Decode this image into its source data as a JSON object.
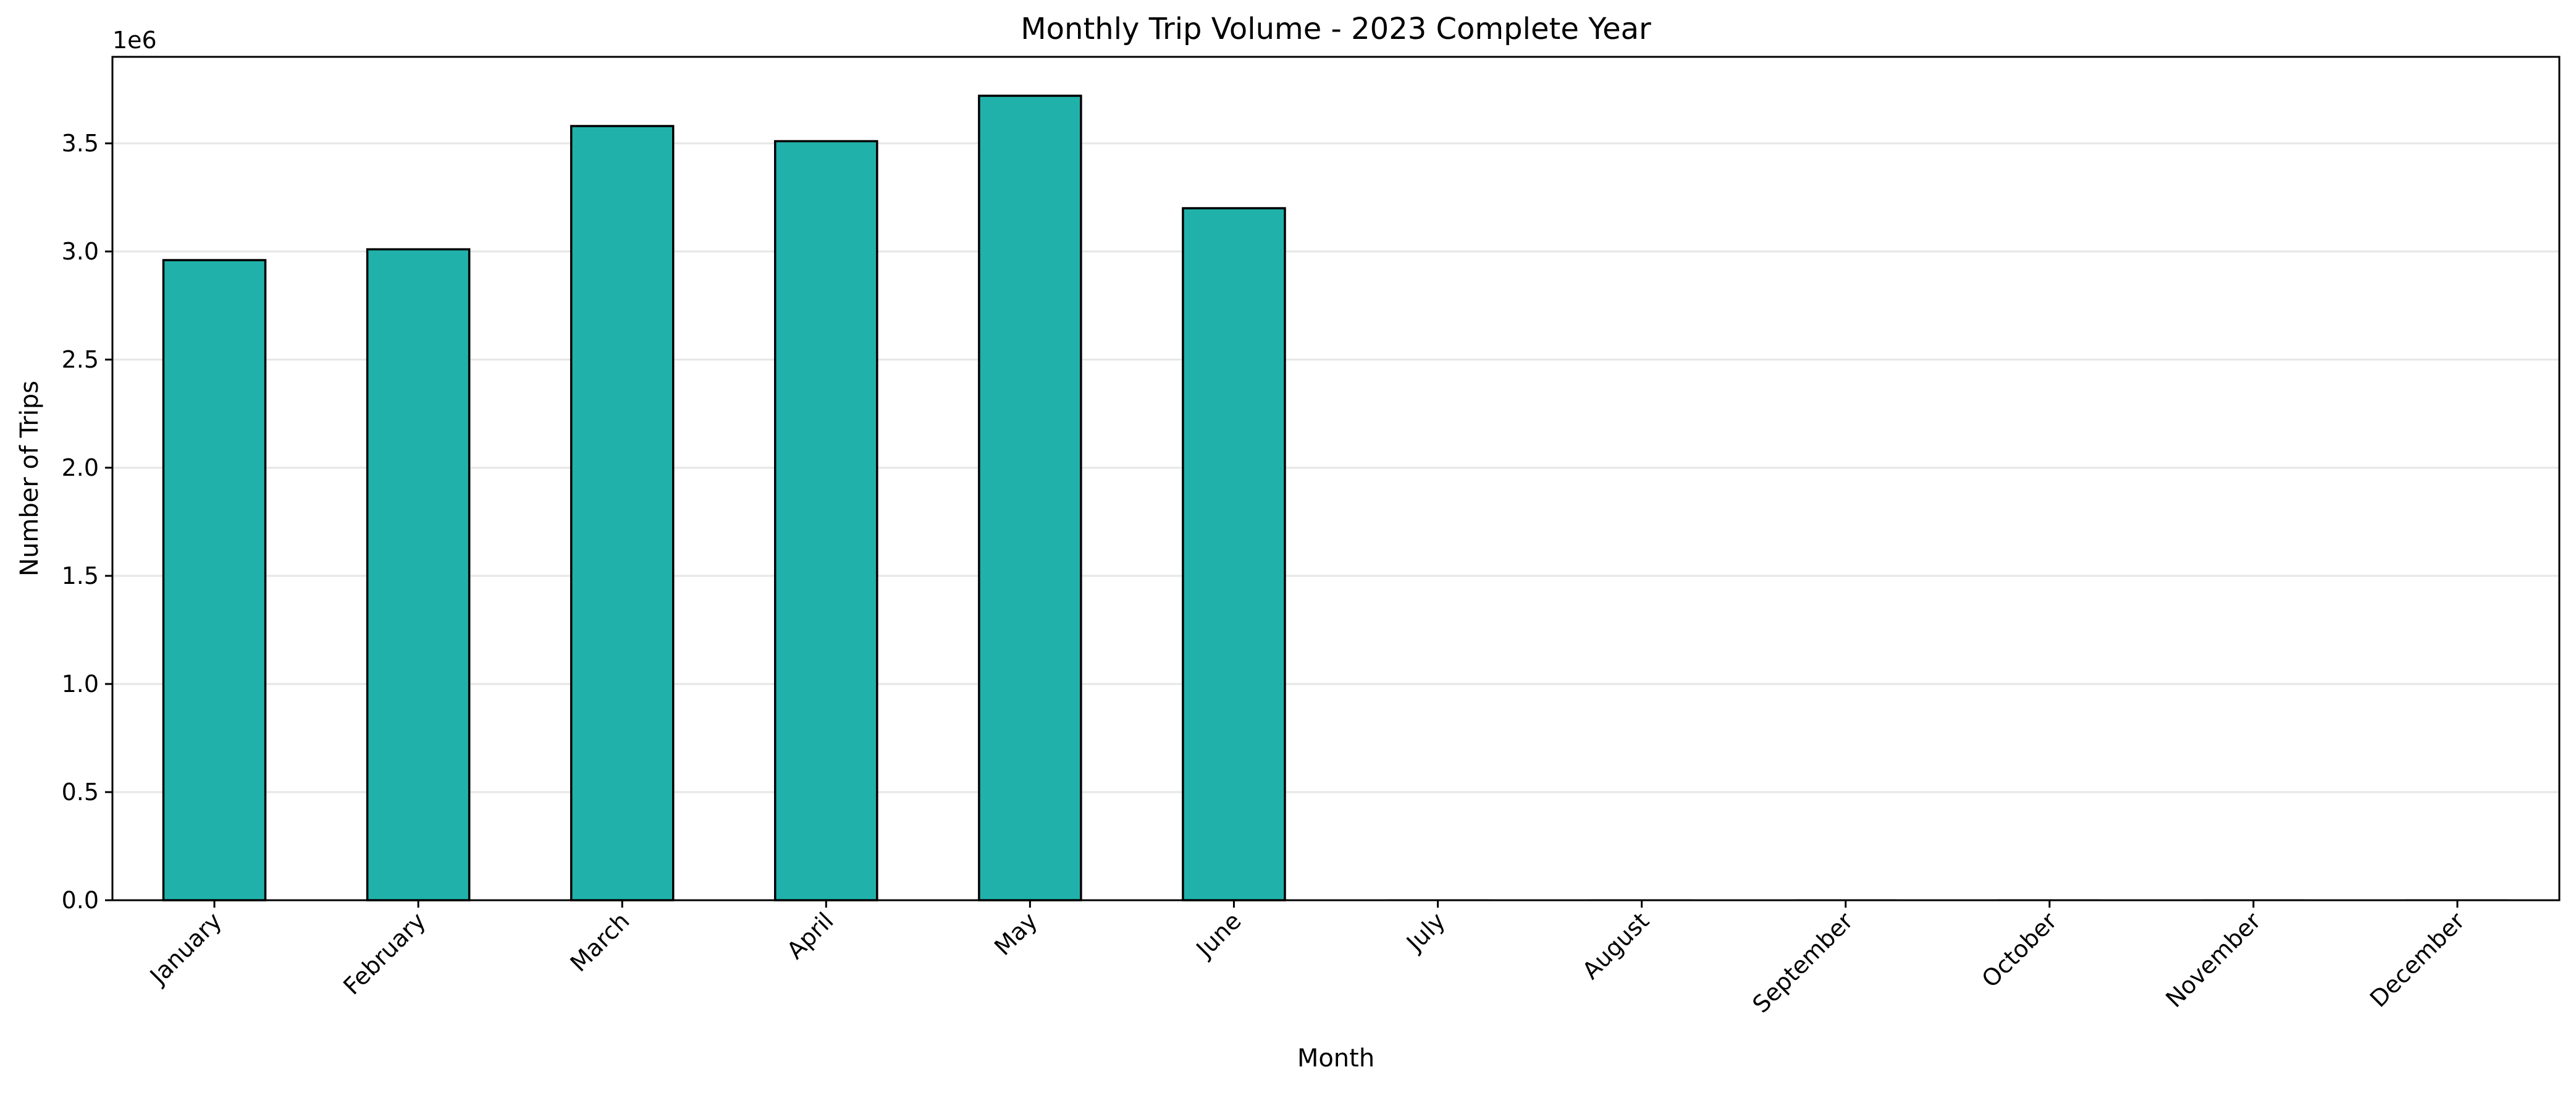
{
  "chart_data": {
    "type": "bar",
    "title": "Monthly Trip Volume - 2023 Complete Year",
    "xlabel": "Month",
    "ylabel": "Number of Trips",
    "y_offset_label": "1e6",
    "categories": [
      "January",
      "February",
      "March",
      "April",
      "May",
      "June",
      "July",
      "August",
      "September",
      "October",
      "November",
      "December"
    ],
    "values": [
      2960000,
      3010000,
      3580000,
      3510000,
      3720000,
      3200000,
      0,
      0,
      0,
      0,
      0,
      0
    ],
    "ylim": [
      0,
      3900000
    ],
    "y_ticks": [
      0,
      500000,
      1000000,
      1500000,
      2000000,
      2500000,
      3000000,
      3500000
    ],
    "y_tick_labels": [
      "0.0",
      "0.5",
      "1.0",
      "1.5",
      "2.0",
      "2.5",
      "3.0",
      "3.5"
    ],
    "grid": "horizontal",
    "bar_color": "#20b2aa",
    "bar_edge_color": "#000000",
    "grid_color": "#e6e6e6",
    "x_tick_rotation_deg": 45
  }
}
